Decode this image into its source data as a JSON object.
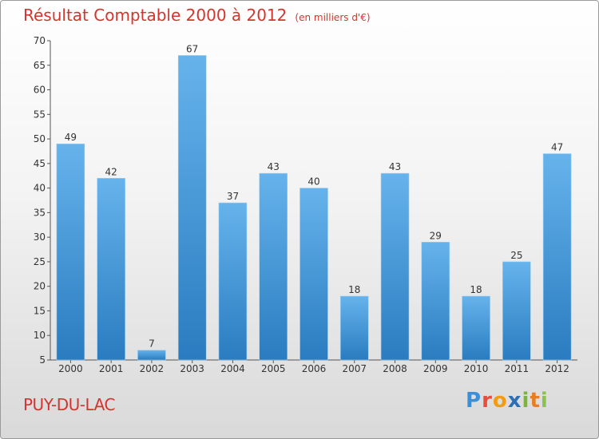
{
  "title": "Résultat Comptable 2000 à 2012",
  "subtitle": "(en milliers d'€)",
  "place": "PUY-DU-LAC",
  "logo": {
    "letters": [
      {
        "ch": "P",
        "color": "#3a8fd6"
      },
      {
        "ch": "r",
        "color": "#e74c3c"
      },
      {
        "ch": "o",
        "color": "#f39c12"
      },
      {
        "ch": "x",
        "color": "#2c6fb6"
      },
      {
        "ch": "i",
        "color": "#7cb342"
      },
      {
        "ch": "t",
        "color": "#e67e22"
      },
      {
        "ch": "i",
        "color": "#8bc34a"
      }
    ]
  },
  "colors": {
    "bar_light": "#66b3ec",
    "bar_dark": "#2a7cc0",
    "axis": "#555555"
  },
  "chart_data": {
    "type": "bar",
    "title": "Résultat Comptable 2000 à 2012",
    "subtitle": "(en milliers d'€)",
    "xlabel": "",
    "ylabel": "",
    "categories": [
      "2000",
      "2001",
      "2002",
      "2003",
      "2004",
      "2005",
      "2006",
      "2007",
      "2008",
      "2009",
      "2010",
      "2011",
      "2012"
    ],
    "values": [
      49,
      42,
      7,
      67,
      37,
      43,
      40,
      18,
      43,
      29,
      18,
      25,
      47
    ],
    "ylim": [
      5,
      70
    ],
    "yticks": [
      5,
      10,
      15,
      20,
      25,
      30,
      35,
      40,
      45,
      50,
      55,
      60,
      65,
      70
    ]
  }
}
